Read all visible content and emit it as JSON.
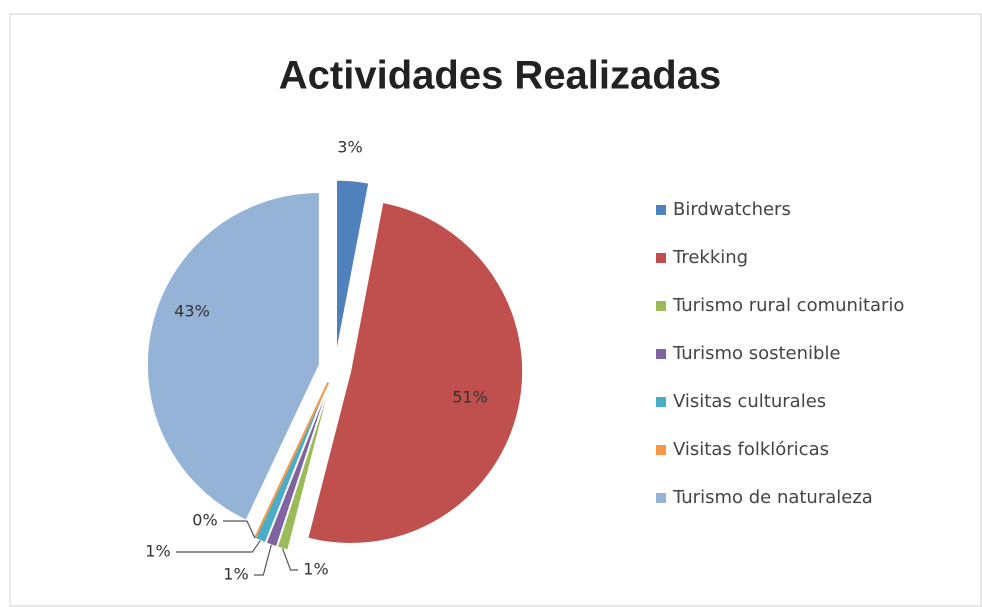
{
  "chart_data": {
    "type": "pie",
    "title": "Actividades Realizadas",
    "categories": [
      "Birdwatchers",
      "Trekking",
      "Turismo rural comunitario",
      "Turismo sostenible",
      "Visitas culturales",
      "Visitas folklóricas",
      "Turismo de naturaleza"
    ],
    "values": [
      3,
      51,
      1,
      1,
      1,
      0,
      43
    ],
    "value_labels": [
      "3%",
      "51%",
      "1%",
      "1%",
      "1%",
      "0%",
      "43%"
    ],
    "colors": [
      "#4f81bd",
      "#c0504d",
      "#9bbb59",
      "#8064a2",
      "#4bacc6",
      "#f79646",
      "#95b3d7"
    ],
    "legend": "right"
  }
}
